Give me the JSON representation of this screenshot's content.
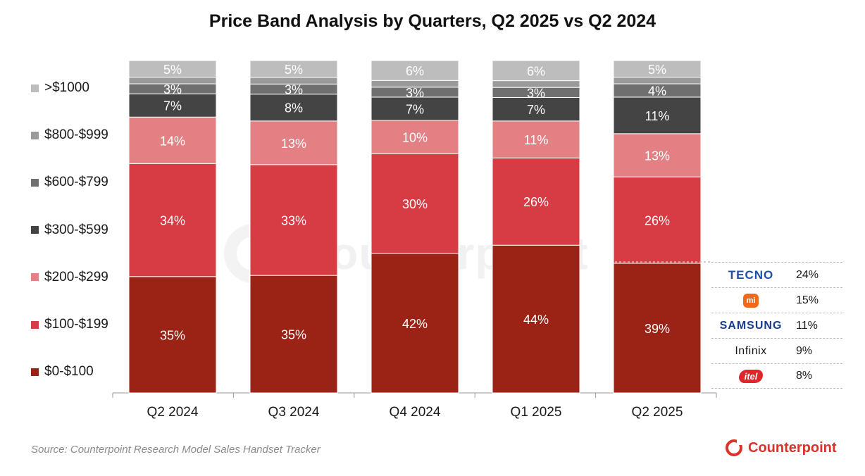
{
  "chart_data": {
    "type": "bar",
    "stacked": true,
    "title": "Price Band Analysis by Quarters, Q2 2025 vs Q2 2024",
    "categories": [
      "Q2 2024",
      "Q3 2024",
      "Q4 2024",
      "Q1 2025",
      "Q2 2025"
    ],
    "series": [
      {
        "name": "$0-$100",
        "color": "#9a2316",
        "values": [
          35,
          35,
          42,
          44,
          39
        ]
      },
      {
        "name": "$100-$199",
        "color": "#d73b43",
        "values": [
          34,
          33,
          30,
          26,
          26
        ]
      },
      {
        "name": "$200-$299",
        "color": "#e38083",
        "values": [
          14,
          13,
          10,
          11,
          13
        ]
      },
      {
        "name": "$300-$599",
        "color": "#444444",
        "values": [
          7,
          8,
          7,
          7,
          11
        ]
      },
      {
        "name": "$600-$799",
        "color": "#6f6f6f",
        "values": [
          3,
          3,
          3,
          3,
          4
        ]
      },
      {
        "name": "$800-$999",
        "color": "#9a9a9a",
        "values": [
          2,
          2,
          2,
          2,
          2
        ]
      },
      {
        "name": ">$1000",
        "color": "#bdbdbd",
        "values": [
          5,
          5,
          6,
          6,
          5
        ]
      }
    ],
    "labeled_series": [
      "$0-$100",
      "$100-$199",
      "$200-$299",
      "$300-$599",
      "$600-$799",
      ">$1000"
    ],
    "legend_order": [
      ">$1000",
      "$800-$999",
      "$600-$799",
      "$300-$599",
      "$200-$299",
      "$100-$199",
      "$0-$100"
    ],
    "legend_position": "left",
    "ylim": [
      0,
      100
    ],
    "grid": false
  },
  "brand_shares": {
    "quarter": "Q2 2025",
    "rows": [
      {
        "brand": "TECNO",
        "logo": "tecno-logo",
        "share": "24%"
      },
      {
        "brand": "mi",
        "logo": "xiaomi-logo",
        "share": "15%"
      },
      {
        "brand": "SAMSUNG",
        "logo": "samsung-logo",
        "share": "11%"
      },
      {
        "brand": "Infinix",
        "logo": "infinix-logo",
        "share": "9%"
      },
      {
        "brand": "itel",
        "logo": "itel-logo",
        "share": "8%"
      }
    ]
  },
  "watermark": "Counterpoint",
  "source": "Source: Counterpoint Research Model Sales Handset Tracker",
  "footer_brand": "Counterpoint"
}
